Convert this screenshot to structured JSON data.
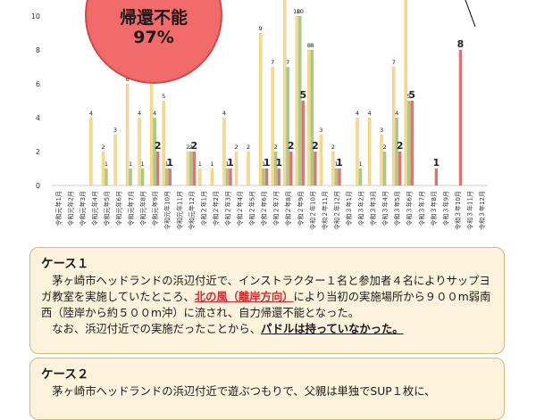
{
  "chart_data": {
    "type": "bar",
    "ylim": [
      0,
      10
    ],
    "yticks": [
      0,
      2,
      4,
      6,
      8,
      10
    ],
    "colors": {
      "yellow": "#fad886",
      "green": "#a5cc82",
      "red": "#eb6e6e"
    },
    "categories": [
      "令和元年1月",
      "令和元年2月",
      "令和元年3月",
      "令和元年4月",
      "令和元年5月",
      "令和元年6月",
      "令和元年7月",
      "令和元年8月",
      "令和元年9月",
      "令和元年10月",
      "令和元年11月",
      "令和元年12月",
      "令和２年1月",
      "令和２年2月",
      "令和２年3月",
      "令和２年4月",
      "令和２年5月",
      "令和２年6月",
      "令和２年7月",
      "令和２年8月",
      "令和２年9月",
      "令和２年10月",
      "令和２年11月",
      "令和２年12月",
      "令和３年1月",
      "令和３年2月",
      "令和３年3月",
      "令和３年4月",
      "令和３年5月",
      "令和３年6月",
      "令和３年7月",
      "令和３年8月",
      "令和３年9月",
      "令和３年10月",
      "令和３年11月",
      "令和３年12月"
    ],
    "series": [
      {
        "color": "yellow",
        "values": [
          0,
          0,
          0,
          4,
          2,
          3,
          6,
          4,
          6,
          5,
          0,
          2,
          1,
          1,
          4,
          2,
          2,
          9,
          7,
          11,
          10,
          8,
          3,
          2,
          0,
          4,
          4,
          3,
          7,
          11,
          0,
          0,
          0,
          0,
          0,
          0
        ]
      },
      {
        "color": "green",
        "values": [
          0,
          0,
          0,
          0,
          1,
          0,
          1,
          1,
          4,
          1,
          0,
          2,
          0,
          0,
          1,
          0,
          0,
          1,
          2,
          7,
          10,
          8,
          0,
          1,
          0,
          1,
          0,
          2,
          4,
          5,
          0,
          0,
          0,
          0,
          0,
          0
        ]
      },
      {
        "color": "red",
        "values": [
          0,
          0,
          0,
          0,
          0,
          0,
          0,
          0,
          2,
          1,
          0,
          2,
          0,
          0,
          1,
          0,
          0,
          1,
          1,
          2,
          5,
          2,
          0,
          1,
          0,
          0,
          0,
          0,
          2,
          5,
          0,
          1,
          0,
          8,
          0,
          0
        ]
      }
    ],
    "annotations": [
      "2",
      "1",
      "2",
      "1",
      "1",
      "1",
      "2",
      "5",
      "2",
      "1",
      "2",
      "5",
      "1",
      "8"
    ]
  },
  "badge": {
    "line1": "帰還不能",
    "line2": "97%"
  },
  "case1": {
    "title": "ケース１",
    "p1a": "茅ヶ崎市ヘッドランドの浜辺付近で、インストラクター１名と参加者４名によりサップヨガ教室を実施していたところ、",
    "p1b": "北の風（離岸方向）",
    "p1c": "により当初の実施場所から９００m弱南西（陸岸から約５００m沖）に流され、自力帰還不能となった。",
    "p2a": "なお、浜辺付近での実施だったことから、",
    "p2b": "パドルは持っていなかった。"
  },
  "case2": {
    "title": "ケース２",
    "p1": "茅ヶ崎市ヘッドランドの浜辺付近で遊ぶつもりで、父親は単独でSUP１枚に、"
  }
}
